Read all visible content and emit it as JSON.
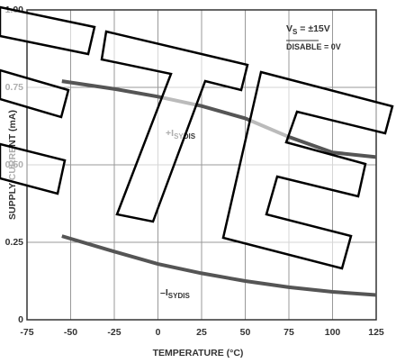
{
  "chart_data": {
    "type": "line",
    "x_label": "TEMPERATURE (°C)",
    "y_label": "SUPPLY CURRENT (mA)",
    "xlim": [
      -75,
      125
    ],
    "xticks": [
      -75,
      -50,
      -25,
      0,
      25,
      50,
      75,
      100,
      125
    ],
    "ylim": [
      0,
      1
    ],
    "yticks": [
      0,
      0.25,
      {
        "value": 0.5,
        "label": "0.50"
      },
      0.75,
      {
        "value": 1,
        "label": "1.00"
      }
    ],
    "grid": true,
    "annotations": [
      {
        "text": "V",
        "sub": "S",
        "rest": " = ±15V"
      },
      {
        "text": "DISABLE",
        "rest": " = 0V"
      }
    ],
    "x": [
      -55,
      -25,
      0,
      25,
      50,
      75,
      100,
      125
    ],
    "series": [
      {
        "name": "+I",
        "name_sub": "SYDIS",
        "color": "#555555",
        "values": [
          0.77,
          0.745,
          0.72,
          0.69,
          0.65,
          0.59,
          0.54,
          0.525
        ]
      },
      {
        "name": "–I",
        "name_sub": "SYDIS",
        "color": "#555555",
        "values": [
          0.27,
          0.22,
          0.18,
          0.15,
          0.125,
          0.105,
          0.09,
          0.08
        ]
      }
    ]
  }
}
